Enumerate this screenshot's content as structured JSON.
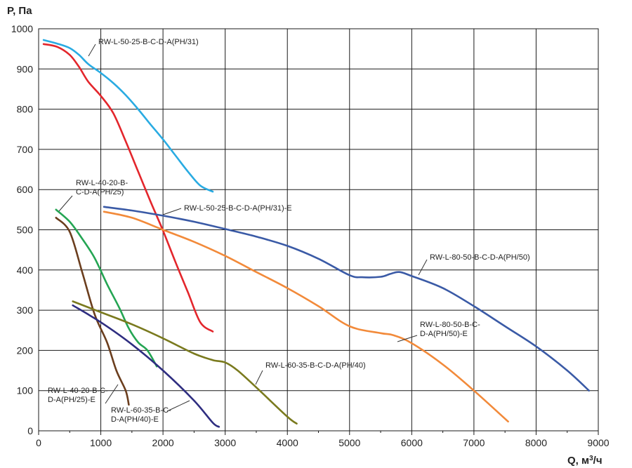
{
  "chart_data": {
    "type": "line",
    "ylabel": "P, Па",
    "xlabel": "Q, м³/ч",
    "xlim": [
      0,
      9000
    ],
    "ylim": [
      0,
      1000
    ],
    "x_ticks": [
      0,
      1000,
      2000,
      3000,
      4000,
      5000,
      6000,
      7000,
      8000,
      9000
    ],
    "y_ticks": [
      0,
      100,
      200,
      300,
      400,
      500,
      600,
      700,
      800,
      900,
      1000
    ],
    "minor_x_ticks": [
      500,
      1500,
      2500,
      3500,
      4500,
      5500,
      6500,
      7500,
      8500
    ],
    "grid": true,
    "series": [
      {
        "name": "RW-L-50-25-B-C-D-A(PH/31)",
        "color": "#29abe2",
        "x": [
          80,
          300,
          500,
          650,
          800,
          1000,
          1200,
          1400,
          1600,
          1800,
          2000,
          2200,
          2400,
          2600,
          2800
        ],
        "y": [
          972,
          963,
          952,
          935,
          912,
          890,
          865,
          835,
          800,
          762,
          725,
          685,
          645,
          610,
          595
        ]
      },
      {
        "name": "RW-L-50-25-B-C-D-A(PH/31)-E",
        "color": "#e3262c",
        "x": [
          80,
          300,
          500,
          650,
          800,
          1000,
          1200,
          1400,
          1600,
          1800,
          2000,
          2200,
          2400,
          2600,
          2800
        ],
        "y": [
          962,
          955,
          935,
          905,
          868,
          833,
          790,
          720,
          645,
          570,
          498,
          420,
          345,
          270,
          247
        ]
      },
      {
        "name": "RW-L-80-50-B-C-D-A(PH/50)",
        "color": "#3a5aa6",
        "x": [
          1050,
          1500,
          2000,
          2500,
          3000,
          3500,
          4000,
          4500,
          5000,
          5200,
          5500,
          5650,
          5800,
          6000,
          6500,
          7000,
          7500,
          8000,
          8500,
          8850
        ],
        "y": [
          557,
          548,
          535,
          520,
          502,
          483,
          460,
          428,
          387,
          382,
          383,
          390,
          395,
          385,
          355,
          310,
          260,
          210,
          150,
          100
        ]
      },
      {
        "name": "RW-L-80-50-B-C-D-A(PH/50)-E",
        "color": "#f28a3a",
        "x": [
          1050,
          1500,
          2000,
          2500,
          3000,
          3500,
          4000,
          4500,
          5000,
          5500,
          5700,
          6000,
          6500,
          7000,
          7550
        ],
        "y": [
          545,
          530,
          500,
          470,
          435,
          395,
          355,
          310,
          260,
          243,
          238,
          218,
          165,
          100,
          23
        ]
      },
      {
        "name": "RW-L-40-20-B-C-D-A(PH/25)",
        "color": "#24a553",
        "x": [
          280,
          500,
          700,
          900,
          1100,
          1300,
          1450,
          1600,
          1750,
          1900
        ],
        "y": [
          550,
          520,
          478,
          430,
          365,
          305,
          255,
          220,
          200,
          160
        ]
      },
      {
        "name": "RW-L-40-20-B-C-D-A(PH/25)-E",
        "color": "#6b3e1e",
        "x": [
          280,
          500,
          700,
          900,
          1100,
          1250,
          1400,
          1450
        ],
        "y": [
          530,
          495,
          395,
          290,
          220,
          150,
          100,
          65
        ]
      },
      {
        "name": "RW-L-60-35-B-C-D-A(PH/40)",
        "color": "#7a7a1e",
        "x": [
          550,
          1000,
          1500,
          2000,
          2500,
          2800,
          3000,
          3200,
          3500,
          4000,
          4150
        ],
        "y": [
          322,
          295,
          265,
          230,
          192,
          176,
          170,
          150,
          108,
          35,
          18
        ]
      },
      {
        "name": "RW-L-60-35-B-C-D-A(PH/40)-E",
        "color": "#2e2d80",
        "x": [
          550,
          1000,
          1500,
          2000,
          2500,
          2800,
          2900
        ],
        "y": [
          312,
          270,
          215,
          150,
          75,
          20,
          10
        ]
      }
    ],
    "labels": [
      {
        "text": "RW-L-50-25-B-C-D-A(PH/31)",
        "lines": [
          "RW-L-50-25-B-C-D-A(PH/31)"
        ]
      },
      {
        "text": "RW-L-50-25-B-C-D-A(PH/31)-E",
        "lines": [
          "RW-L-50-25-B-C-D-A(PH/31)-E"
        ]
      },
      {
        "text": "RW-L-80-50-B-C-D-A(PH/50)",
        "lines": [
          "RW-L-80-50-B-C-D-A(PH/50)"
        ]
      },
      {
        "text": "RW-L-80-50-B-C-D-A(PH/50)-E",
        "lines": [
          "RW-L-80-50-B-C-",
          "D-A(PH/50)-E"
        ]
      },
      {
        "text": "RW-L-40-20-B-C-D-A(PH/25)",
        "lines": [
          "RW-L-40-20-B-",
          "C-D-A(PH/25)"
        ]
      },
      {
        "text": "RW-L-40-20-B-C-D-A(PH/25)-E",
        "lines": [
          "RW-L-40-20-B-C-",
          "D-A(PH/25)-E"
        ]
      },
      {
        "text": "RW-L-60-35-B-C-D-A(PH/40)",
        "lines": [
          "RW-L-60-35-B-C-D-A(PH/40)"
        ]
      },
      {
        "text": "RW-L-60-35-B-C-D-A(PH/40)-E",
        "lines": [
          "RW-L-60-35-B-C-",
          "D-A(PH/40)-E"
        ]
      }
    ]
  }
}
